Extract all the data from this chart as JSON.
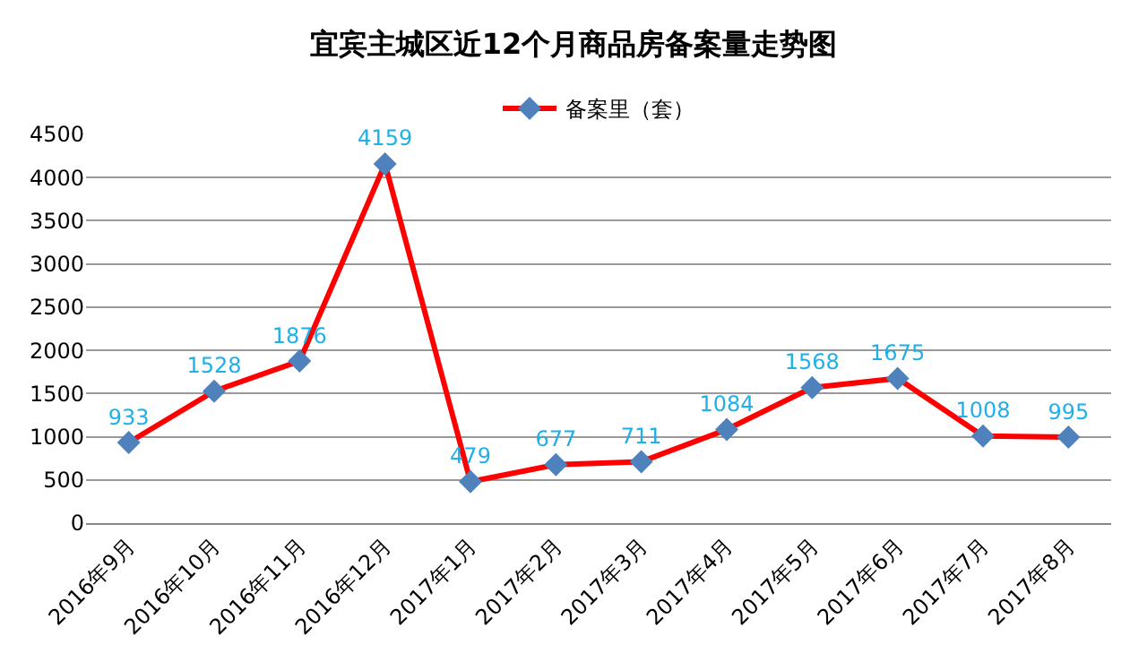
{
  "chart_data": {
    "type": "line",
    "title": "宜宾主城区近12个月商品房备案量走势图",
    "categories": [
      "2016年9月",
      "2016年10月",
      "2016年11月",
      "2016年12月",
      "2017年1月",
      "2017年2月",
      "2017年3月",
      "2017年4月",
      "2017年5月",
      "2017年6月",
      "2017年7月",
      "2017年8月"
    ],
    "series": [
      {
        "name": "备案里（套）",
        "color": "#ff0000",
        "values": [
          933,
          1528,
          1876,
          4159,
          479,
          677,
          711,
          1084,
          1568,
          1675,
          1008,
          995
        ]
      }
    ],
    "ylim": [
      0,
      4500
    ],
    "yticks": [
      0,
      500,
      1000,
      1500,
      2000,
      2500,
      3000,
      3500,
      4000,
      4500
    ],
    "grid": "y",
    "legend": "top",
    "marker": "diamond",
    "line_style": "solid",
    "data_labels": true
  }
}
